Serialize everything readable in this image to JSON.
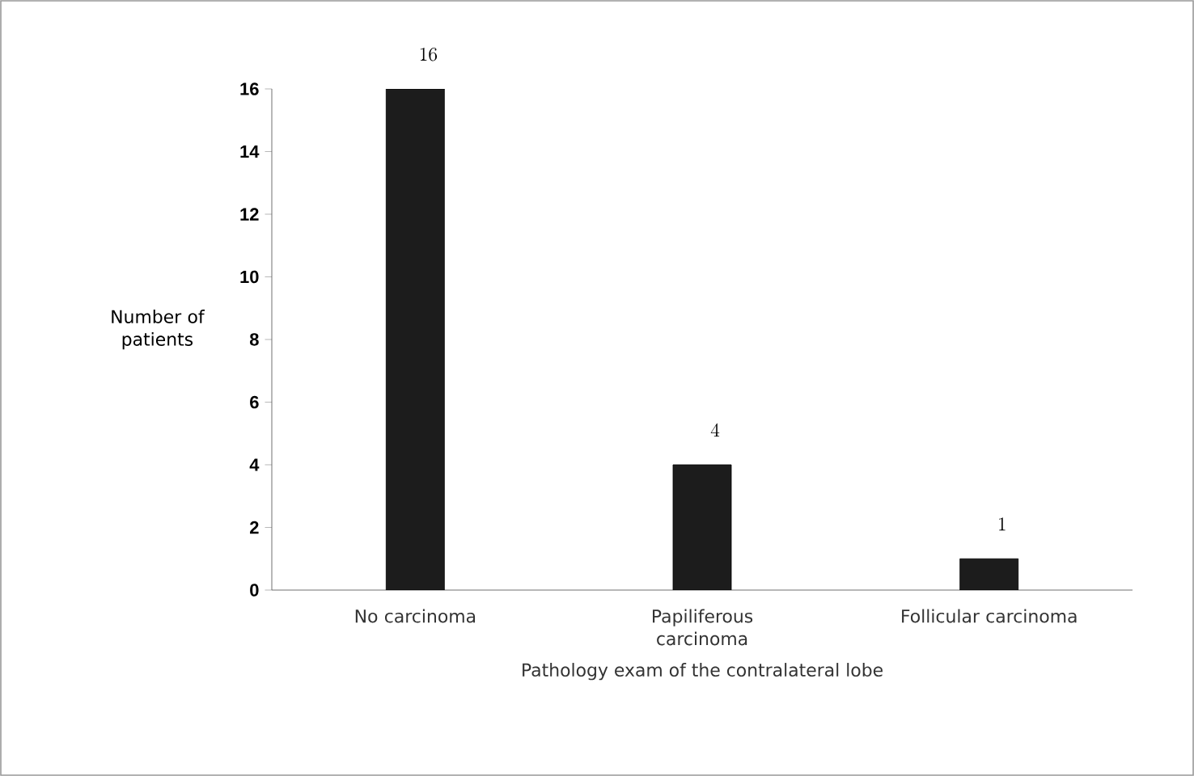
{
  "chart_data": {
    "type": "bar",
    "xlabel": "Pathology exam of the contralateral lobe",
    "ylabel": "Number of patients",
    "categories": [
      "No carcinoma",
      "Papiliferous carcinoma",
      "Follicular carcinoma"
    ],
    "values": [
      16,
      4,
      1
    ],
    "color": "#1c1c1c",
    "ylim": [
      0,
      16
    ],
    "yticks": [
      0,
      2,
      4,
      6,
      8,
      10,
      12,
      14,
      16
    ],
    "data_labels": true
  }
}
